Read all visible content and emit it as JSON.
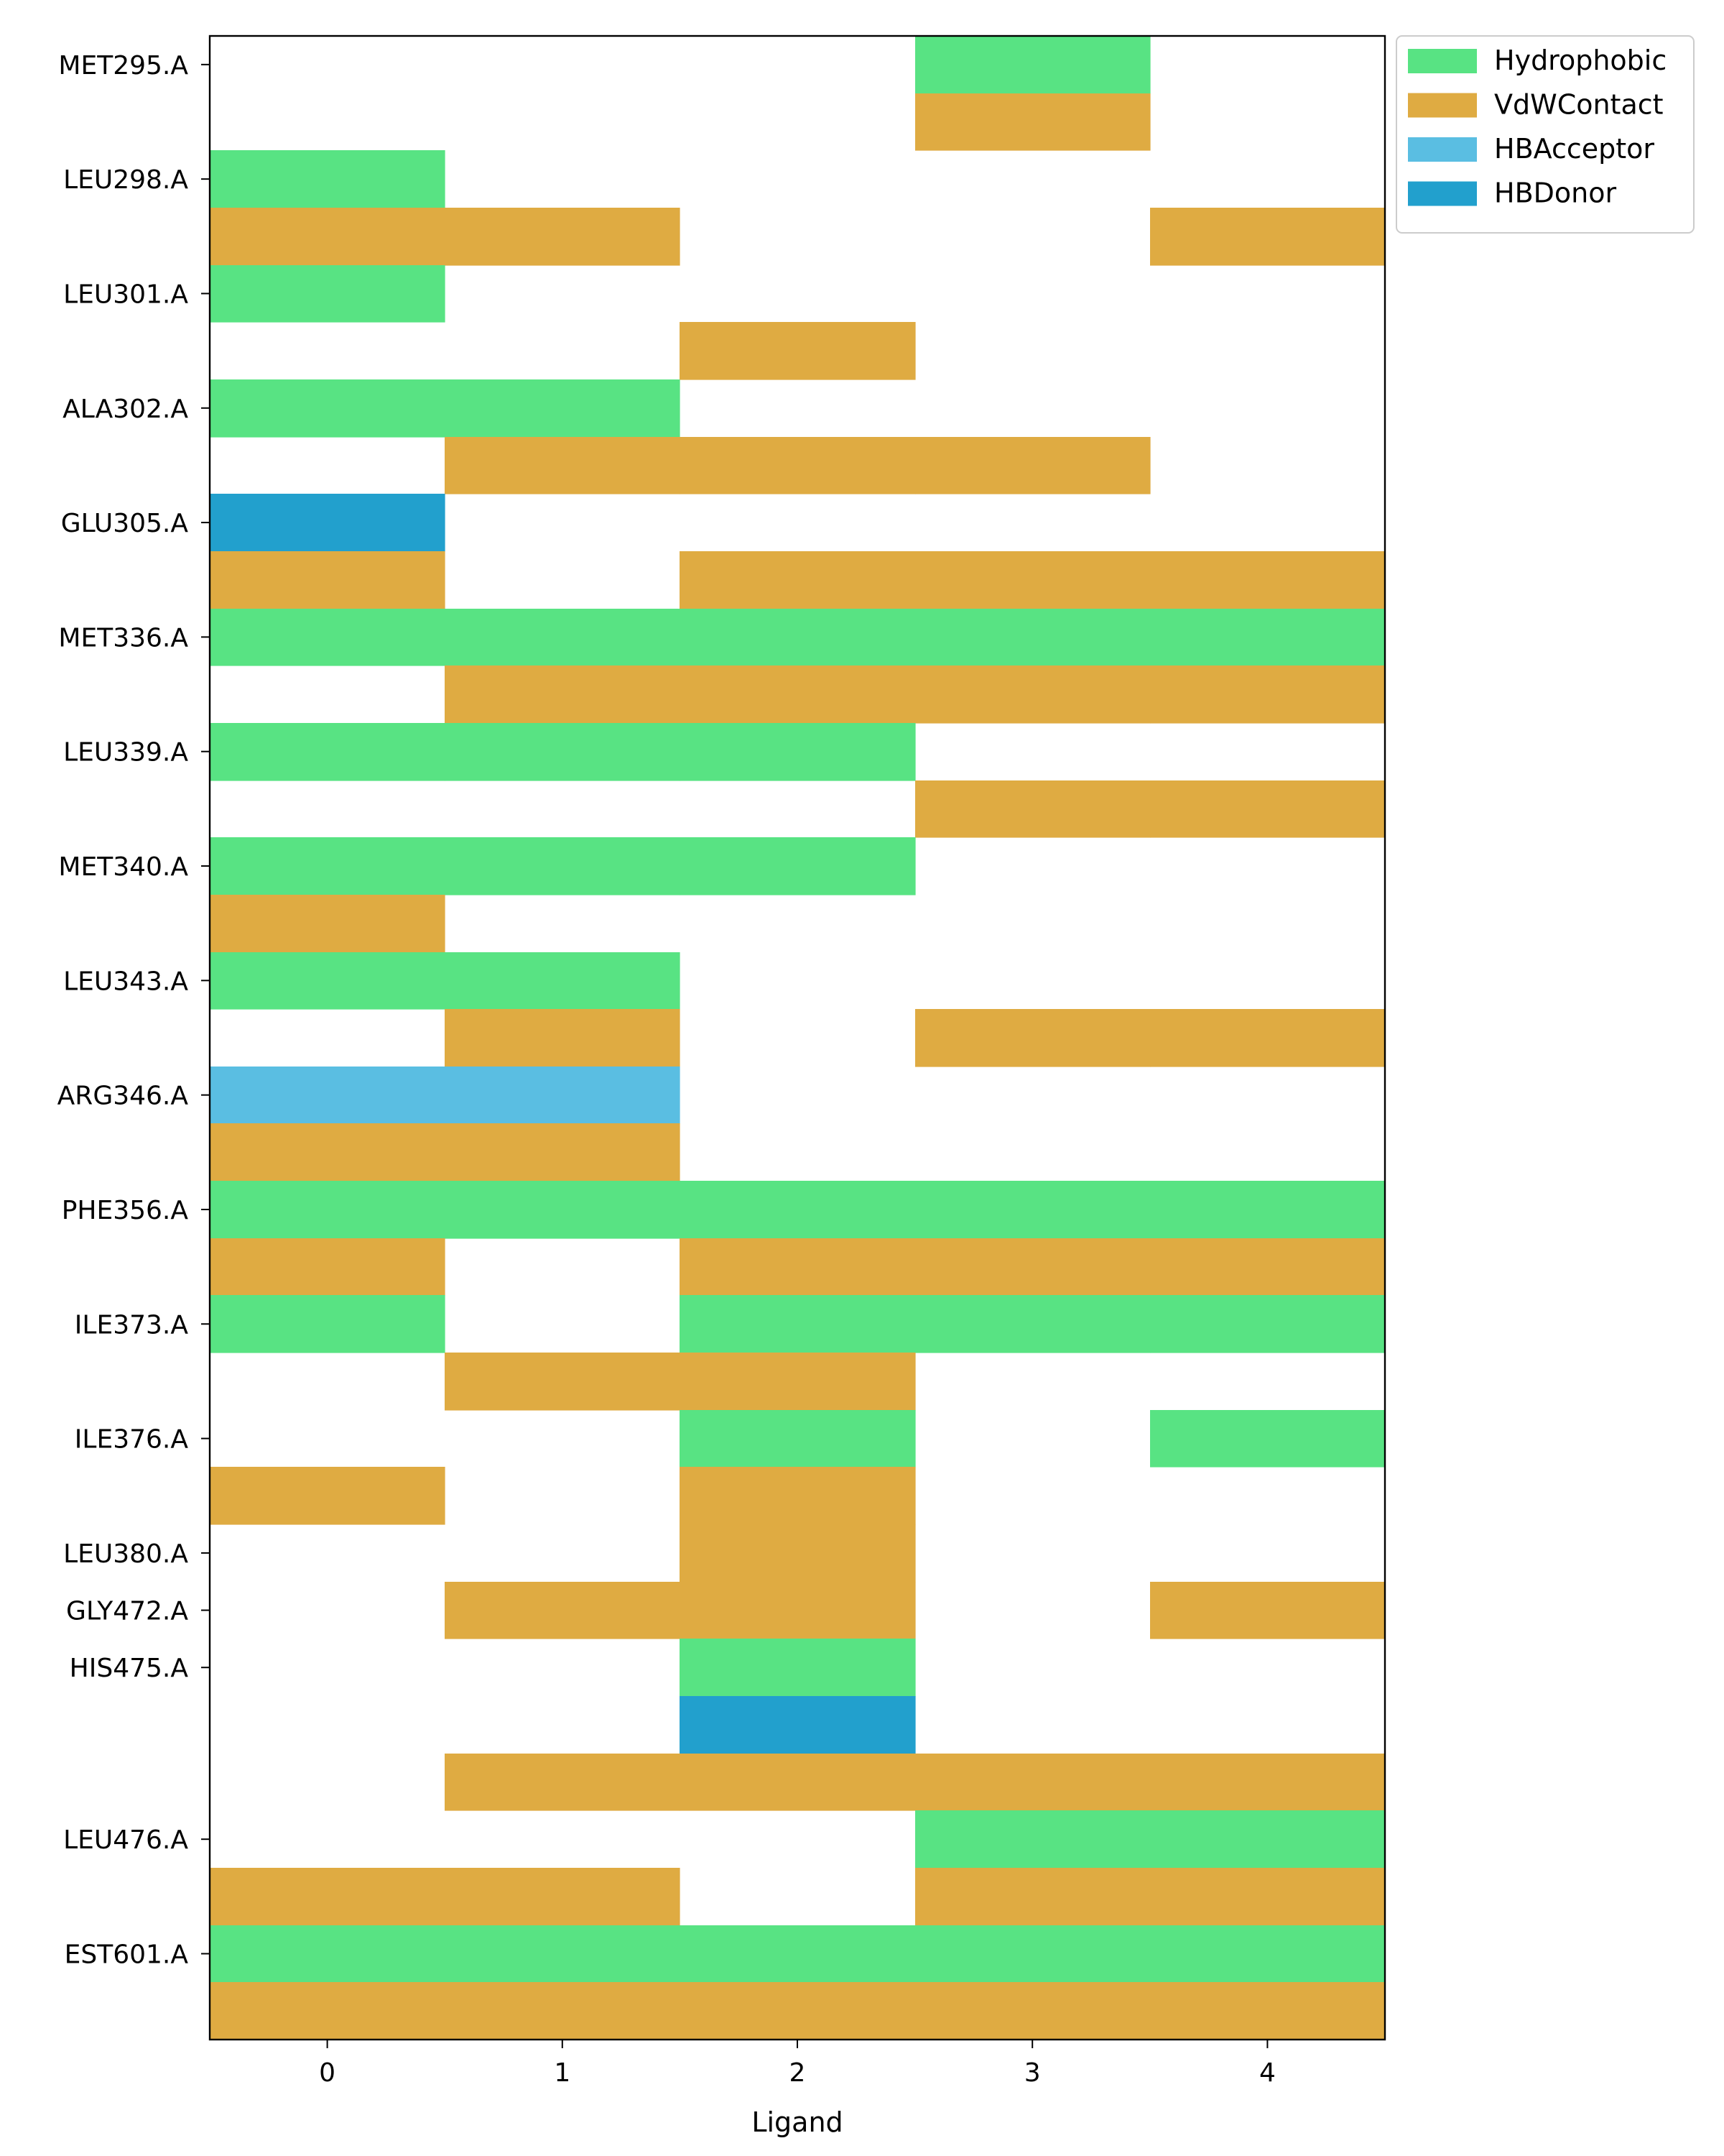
{
  "chart_data": {
    "type": "heatmap",
    "title": "",
    "xlabel": "Ligand",
    "ylabel": "",
    "x": [
      "0",
      "1",
      "2",
      "3",
      "4"
    ],
    "xlim": [
      -0.5,
      4.5
    ],
    "y_tick_labels": [
      {
        "label": "MET295.A",
        "row": 0
      },
      {
        "label": "LEU298.A",
        "row": 2
      },
      {
        "label": "LEU301.A",
        "row": 4
      },
      {
        "label": "ALA302.A",
        "row": 6
      },
      {
        "label": "GLU305.A",
        "row": 8
      },
      {
        "label": "MET336.A",
        "row": 10
      },
      {
        "label": "LEU339.A",
        "row": 12
      },
      {
        "label": "MET340.A",
        "row": 14
      },
      {
        "label": "LEU343.A",
        "row": 16
      },
      {
        "label": "ARG346.A",
        "row": 18
      },
      {
        "label": "PHE356.A",
        "row": 20
      },
      {
        "label": "ILE373.A",
        "row": 22
      },
      {
        "label": "ILE376.A",
        "row": 24
      },
      {
        "label": "LEU380.A",
        "row": 26
      },
      {
        "label": "GLY472.A",
        "row": 27
      },
      {
        "label": "HIS475.A",
        "row": 28
      },
      {
        "label": "LEU476.A",
        "row": 31
      },
      {
        "label": "EST601.A",
        "row": 33
      }
    ],
    "rows": [
      {
        "interaction": "Hydrophobic",
        "cells": [
          0,
          0,
          0,
          1,
          0
        ]
      },
      {
        "interaction": "VdWContact",
        "cells": [
          0,
          0,
          0,
          1,
          0
        ]
      },
      {
        "interaction": "Hydrophobic",
        "cells": [
          1,
          0,
          0,
          0,
          0
        ]
      },
      {
        "interaction": "VdWContact",
        "cells": [
          1,
          1,
          0,
          0,
          1
        ]
      },
      {
        "interaction": "Hydrophobic",
        "cells": [
          1,
          0,
          0,
          0,
          0
        ]
      },
      {
        "interaction": "VdWContact",
        "cells": [
          0,
          0,
          1,
          0,
          0
        ]
      },
      {
        "interaction": "Hydrophobic",
        "cells": [
          1,
          1,
          0,
          0,
          0
        ]
      },
      {
        "interaction": "VdWContact",
        "cells": [
          0,
          1,
          1,
          1,
          0
        ]
      },
      {
        "interaction": "HBDonor",
        "cells": [
          1,
          0,
          0,
          0,
          0
        ]
      },
      {
        "interaction": "VdWContact",
        "cells": [
          1,
          0,
          1,
          1,
          1
        ]
      },
      {
        "interaction": "Hydrophobic",
        "cells": [
          1,
          1,
          1,
          1,
          1
        ]
      },
      {
        "interaction": "VdWContact",
        "cells": [
          0,
          1,
          1,
          1,
          1
        ]
      },
      {
        "interaction": "Hydrophobic",
        "cells": [
          1,
          1,
          1,
          0,
          0
        ]
      },
      {
        "interaction": "VdWContact",
        "cells": [
          0,
          0,
          0,
          1,
          1
        ]
      },
      {
        "interaction": "Hydrophobic",
        "cells": [
          1,
          1,
          1,
          0,
          0
        ]
      },
      {
        "interaction": "VdWContact",
        "cells": [
          1,
          0,
          0,
          0,
          0
        ]
      },
      {
        "interaction": "Hydrophobic",
        "cells": [
          1,
          1,
          0,
          0,
          0
        ]
      },
      {
        "interaction": "VdWContact",
        "cells": [
          0,
          1,
          0,
          1,
          1
        ]
      },
      {
        "interaction": "HBAcceptor",
        "cells": [
          1,
          1,
          0,
          0,
          0
        ]
      },
      {
        "interaction": "VdWContact",
        "cells": [
          1,
          1,
          0,
          0,
          0
        ]
      },
      {
        "interaction": "Hydrophobic",
        "cells": [
          1,
          1,
          1,
          1,
          1
        ]
      },
      {
        "interaction": "VdWContact",
        "cells": [
          1,
          0,
          1,
          1,
          1
        ]
      },
      {
        "interaction": "Hydrophobic",
        "cells": [
          1,
          0,
          1,
          1,
          1
        ]
      },
      {
        "interaction": "VdWContact",
        "cells": [
          0,
          1,
          1,
          0,
          0
        ]
      },
      {
        "interaction": "Hydrophobic",
        "cells": [
          0,
          0,
          1,
          0,
          1
        ]
      },
      {
        "interaction": "VdWContact",
        "cells": [
          1,
          0,
          1,
          0,
          0
        ]
      },
      {
        "interaction": "VdWContact",
        "cells": [
          0,
          0,
          1,
          0,
          0
        ]
      },
      {
        "interaction": "VdWContact",
        "cells": [
          0,
          1,
          1,
          0,
          1
        ]
      },
      {
        "interaction": "Hydrophobic",
        "cells": [
          0,
          0,
          1,
          0,
          0
        ]
      },
      {
        "interaction": "HBDonor",
        "cells": [
          0,
          0,
          1,
          0,
          0
        ]
      },
      {
        "interaction": "VdWContact",
        "cells": [
          0,
          1,
          1,
          1,
          1
        ]
      },
      {
        "interaction": "Hydrophobic",
        "cells": [
          0,
          0,
          0,
          1,
          1
        ]
      },
      {
        "interaction": "VdWContact",
        "cells": [
          1,
          1,
          0,
          1,
          1
        ]
      },
      {
        "interaction": "Hydrophobic",
        "cells": [
          1,
          1,
          1,
          1,
          1
        ]
      },
      {
        "interaction": "VdWContact",
        "cells": [
          1,
          1,
          1,
          1,
          1
        ]
      }
    ],
    "legend": {
      "placement": "outside-top-right",
      "entries": [
        {
          "name": "Hydrophobic",
          "color": "#58e383"
        },
        {
          "name": "VdWContact",
          "color": "#dfab42"
        },
        {
          "name": "HBAcceptor",
          "color": "#5abee2"
        },
        {
          "name": "HBDonor",
          "color": "#22a0cd"
        }
      ]
    },
    "grid": false
  }
}
